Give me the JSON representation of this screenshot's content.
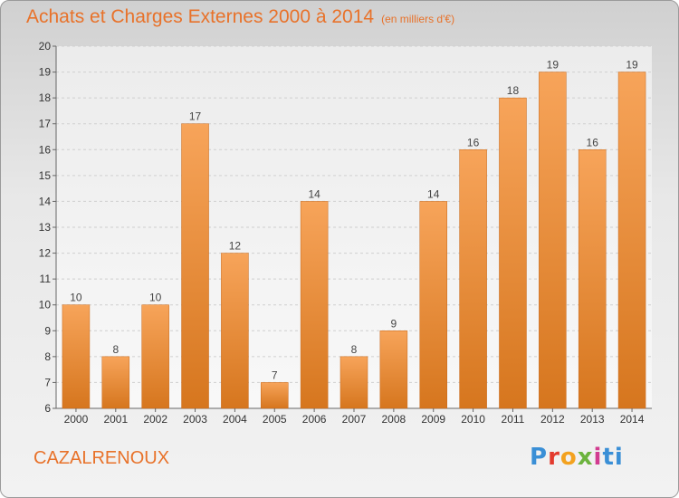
{
  "header": {
    "title": "Achats et Charges Externes 2000 à 2014",
    "unit": "(en milliers d'€)"
  },
  "footer": {
    "commune": "CAZALRENOUX",
    "logo_letters": [
      "P",
      "r",
      "o",
      "x",
      "i",
      "ti"
    ]
  },
  "colors": {
    "accent": "#e8722a",
    "bar_light": "#f7a45a",
    "bar_dark": "#d6761e"
  },
  "chart_data": {
    "type": "bar",
    "categories": [
      "2000",
      "2001",
      "2002",
      "2003",
      "2004",
      "2005",
      "2006",
      "2007",
      "2008",
      "2009",
      "2010",
      "2011",
      "2012",
      "2013",
      "2014"
    ],
    "values": [
      10,
      8,
      10,
      17,
      12,
      7,
      14,
      8,
      9,
      14,
      16,
      18,
      19,
      16,
      19
    ],
    "ylim": [
      6,
      20
    ],
    "yticks": [
      6,
      7,
      8,
      9,
      10,
      11,
      12,
      13,
      14,
      15,
      16,
      17,
      18,
      19,
      20
    ],
    "grid": true,
    "data_labels": true
  }
}
